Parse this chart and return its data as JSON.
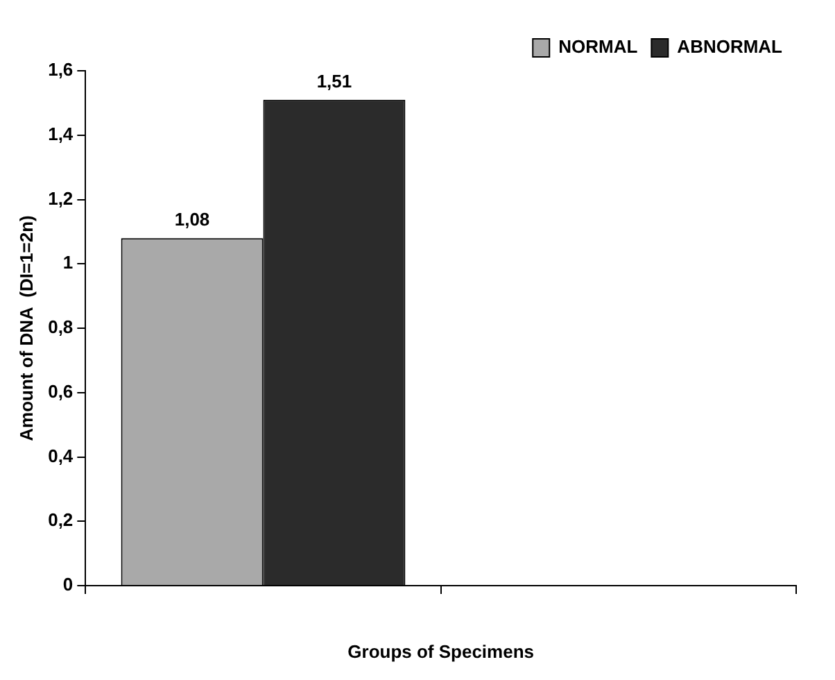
{
  "chart_data": {
    "type": "bar",
    "xlabel": "Groups of Specimens",
    "ylabel": "Amount of DNA  (DI=1=2n)",
    "categories": [
      null,
      null
    ],
    "series": [
      {
        "name": "NORMAL",
        "color": "#a9a9a9",
        "values": [
          1.08,
          null
        ]
      },
      {
        "name": "ABNORMAL",
        "color": "#2b2b2b",
        "values": [
          1.51,
          null
        ]
      }
    ],
    "value_labels": [
      [
        "1,08",
        null
      ],
      [
        "1,51",
        null
      ]
    ],
    "ylim": [
      0,
      1.6
    ],
    "yticks": [
      0,
      {
        "value": 0.2,
        "label": "0,2"
      },
      {
        "value": 0.4,
        "label": "0,4"
      },
      {
        "value": 0.6,
        "label": "0,6"
      },
      {
        "value": 0.8,
        "label": "0,8"
      },
      1,
      {
        "value": 1.2,
        "label": "1,2"
      },
      {
        "value": 1.4,
        "label": "1,4"
      },
      {
        "value": 1.6,
        "label": "1,6"
      }
    ],
    "grid": false,
    "legend": "top right"
  }
}
